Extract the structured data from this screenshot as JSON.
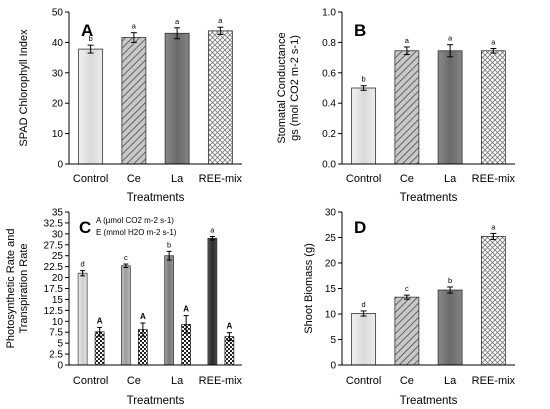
{
  "colors": {
    "control": "#e2e2e2",
    "ce": "#b4b4b4",
    "la": "#7c7c7c",
    "ree": "#ffffff",
    "photo_control": "#d8d8d8",
    "photo_ce": "#ababab",
    "photo_la": "#8a8a8a",
    "photo_ree": "#3c3c3c",
    "transp": "#222222"
  },
  "chart_data": [
    {
      "id": "A",
      "panel_label": "A",
      "type": "bar",
      "categories": [
        "Control",
        "Ce",
        "La",
        "REE-mix"
      ],
      "values": [
        37.8,
        41.6,
        43.0,
        43.8
      ],
      "errors": [
        1.3,
        1.6,
        1.8,
        1.2
      ],
      "letters": [
        "b",
        "a",
        "a",
        "a"
      ],
      "patterns": [
        "solid-control",
        "hatch-ce",
        "solid-la",
        "cross-ree"
      ],
      "ylabel": "SPAD Chlorophyll Index",
      "xlabel": "Treatments",
      "ylim": [
        0,
        50
      ],
      "yticks": [
        "0",
        "10",
        "20",
        "30",
        "40",
        "50"
      ]
    },
    {
      "id": "B",
      "panel_label": "B",
      "type": "bar",
      "categories": [
        "Control",
        "Ce",
        "La",
        "REE-mix"
      ],
      "values": [
        0.5,
        0.745,
        0.745,
        0.745
      ],
      "errors": [
        0.015,
        0.025,
        0.04,
        0.015
      ],
      "letters": [
        "b",
        "a",
        "a",
        "a"
      ],
      "patterns": [
        "solid-control",
        "hatch-ce",
        "solid-la",
        "cross-ree"
      ],
      "ylabel_line1": "Stomatal Conductance",
      "ylabel_line2": "gs (mol CO2 m-2 s-1)",
      "xlabel": "Treatments",
      "ylim": [
        0,
        1.0
      ],
      "yticks": [
        "0.0",
        "0.2",
        "0.4",
        "0.6",
        "0.8",
        "1.0"
      ]
    },
    {
      "id": "C",
      "panel_label": "C",
      "type": "bar",
      "categories": [
        "Control",
        "Ce",
        "La",
        "REE-mix"
      ],
      "series": [
        {
          "name": "A (µmol CO2 m-2 s-1)",
          "values": [
            21.0,
            22.7,
            25.0,
            29.0
          ],
          "errors": [
            0.6,
            0.4,
            1.0,
            0.4
          ],
          "letters": [
            "d",
            "c",
            "b",
            "a"
          ]
        },
        {
          "name": "E (mmol H2O m-2 s-1)",
          "values": [
            7.6,
            8.1,
            9.3,
            6.5
          ],
          "errors": [
            1.0,
            1.5,
            2.0,
            0.9
          ],
          "letters": [
            "A",
            "A",
            "A",
            "A"
          ]
        }
      ],
      "ylabel_line1": "Photosynthetic Rate and",
      "ylabel_line2": "Transpiration Rate",
      "xlabel": "Treatments",
      "ylim": [
        0,
        35
      ],
      "yticks": [
        "0",
        "2.5",
        "5",
        "7.5",
        "10",
        "12.5",
        "15",
        "17.5",
        "20",
        "22.5",
        "25",
        "27.5",
        "30",
        "32.5",
        "35"
      ],
      "legend_line1": "A (µmol CO2 m-2 s-1)",
      "legend_line2": "E (mmol H2O m-2 s-1)"
    },
    {
      "id": "D",
      "panel_label": "D",
      "type": "bar",
      "categories": [
        "Control",
        "Ce",
        "La",
        "REE-mix"
      ],
      "values": [
        10.1,
        13.3,
        14.7,
        25.2
      ],
      "errors": [
        0.5,
        0.4,
        0.6,
        0.6
      ],
      "letters": [
        "d",
        "c",
        "b",
        "a"
      ],
      "patterns": [
        "solid-control",
        "hatch-ce",
        "solid-la",
        "cross-ree"
      ],
      "ylabel": "Shoot Biomass (g)",
      "xlabel": "Treatments",
      "ylim": [
        0,
        30
      ],
      "yticks": [
        "0",
        "5",
        "10",
        "15",
        "20",
        "25",
        "30"
      ]
    }
  ]
}
